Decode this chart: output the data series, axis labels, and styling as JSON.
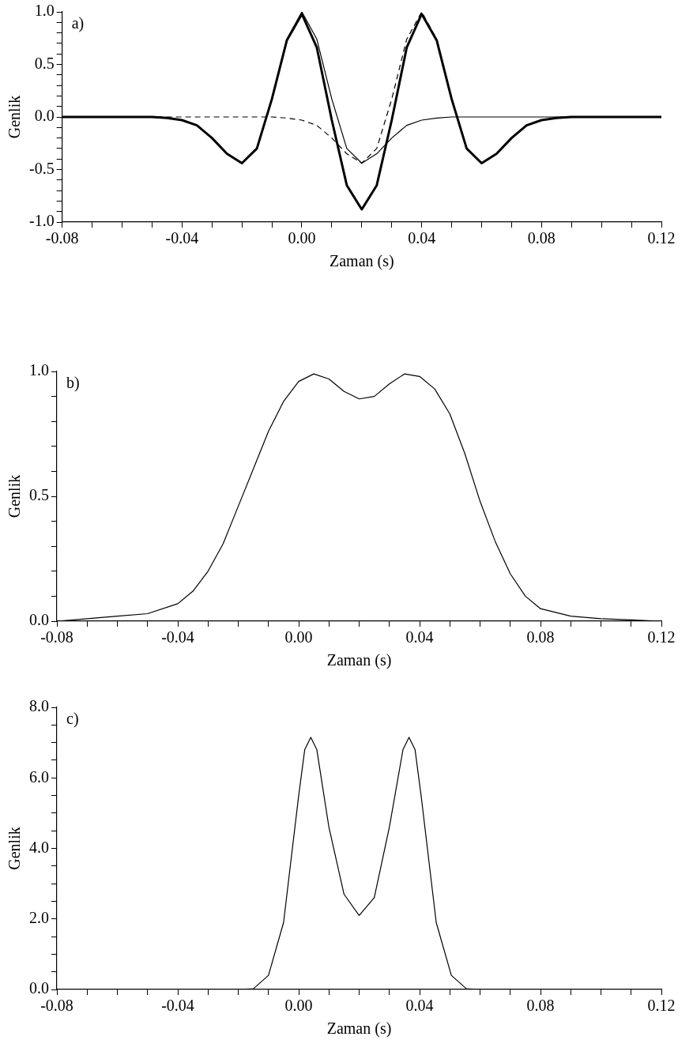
{
  "chart_data": [
    {
      "type": "line",
      "xlabel": "Zaman (s)",
      "ylabel": "Genlik",
      "annotations": [
        "a)"
      ],
      "grid": false,
      "legend": false,
      "marker": "none",
      "series": [
        {
          "color": "#000000",
          "line_style": "solid",
          "x": [
            -0.08,
            -0.05,
            -0.045,
            -0.04,
            -0.035,
            -0.03,
            -0.025,
            -0.02,
            -0.015,
            -0.01,
            -0.005,
            0,
            0.005,
            0.01,
            0.015,
            0.02,
            0.025,
            0.03,
            0.035,
            0.04,
            0.045,
            0.05,
            0.055,
            0.06,
            0.065,
            0.07,
            0.075,
            0.08,
            0.085,
            0.09,
            0.12
          ],
          "values": [
            0,
            0,
            -0.01,
            -0.03,
            -0.08,
            -0.2,
            -0.35,
            -0.44,
            -0.3,
            0.17,
            0.73,
            0.98,
            0.66,
            -0.03,
            -0.65,
            -0.88,
            -0.65,
            -0.03,
            0.66,
            0.98,
            0.73,
            0.17,
            -0.3,
            -0.44,
            -0.35,
            -0.2,
            -0.08,
            -0.03,
            -0.01,
            0,
            0
          ]
        },
        {
          "color": "#000000",
          "line_style": "solid",
          "x": [
            -0.08,
            -0.05,
            -0.045,
            -0.04,
            -0.035,
            -0.03,
            -0.025,
            -0.02,
            -0.015,
            -0.01,
            -0.005,
            0,
            0.005,
            0.01,
            0.015,
            0.02,
            0.025,
            0.03,
            0.035,
            0.04,
            0.045,
            0.05,
            0.12
          ],
          "values": [
            0,
            0,
            -0.01,
            -0.03,
            -0.08,
            -0.2,
            -0.35,
            -0.44,
            -0.3,
            0.17,
            0.74,
            1.0,
            0.74,
            0.17,
            -0.3,
            -0.44,
            -0.35,
            -0.2,
            -0.08,
            -0.03,
            -0.01,
            0,
            0
          ]
        },
        {
          "color": "#000000",
          "line_style": "dashed",
          "x": [
            -0.08,
            -0.01,
            -0.005,
            0,
            0.005,
            0.01,
            0.015,
            0.02,
            0.025,
            0.03,
            0.035,
            0.04,
            0.045,
            0.05,
            0.055,
            0.06,
            0.065,
            0.07,
            0.075,
            0.08,
            0.085,
            0.09,
            0.12
          ],
          "values": [
            0,
            0,
            -0.01,
            -0.03,
            -0.08,
            -0.2,
            -0.35,
            -0.44,
            -0.3,
            0.17,
            0.74,
            1.0,
            0.74,
            0.17,
            -0.3,
            -0.44,
            -0.35,
            -0.2,
            -0.08,
            -0.03,
            -0.01,
            0,
            0
          ]
        }
      ],
      "xlim": [
        -0.08,
        0.12
      ],
      "xticks": [
        {
          "value": -0.08,
          "label": "-0.08"
        },
        {
          "value": -0.07,
          "label": null
        },
        {
          "value": -0.06,
          "label": null
        },
        {
          "value": -0.05,
          "label": null
        },
        {
          "value": -0.04,
          "label": "-0.04"
        },
        {
          "value": -0.03,
          "label": null
        },
        {
          "value": -0.02,
          "label": null
        },
        {
          "value": -0.01,
          "label": null
        },
        {
          "value": 0,
          "label": "0.00"
        },
        {
          "value": 0.01,
          "label": null
        },
        {
          "value": 0.02,
          "label": null
        },
        {
          "value": 0.03,
          "label": null
        },
        {
          "value": 0.04,
          "label": "0.04"
        },
        {
          "value": 0.05,
          "label": null
        },
        {
          "value": 0.06,
          "label": null
        },
        {
          "value": 0.07,
          "label": null
        },
        {
          "value": 0.08,
          "label": "0.08"
        },
        {
          "value": 0.09,
          "label": null
        },
        {
          "value": 0.1,
          "label": null
        },
        {
          "value": 0.11,
          "label": null
        },
        {
          "value": 0.12,
          "label": "0.12"
        }
      ],
      "ylim": [
        -1.0,
        1.0
      ],
      "yticks": [
        {
          "value": -1.0,
          "label": "-1.0"
        },
        {
          "value": -0.9,
          "label": null
        },
        {
          "value": -0.8,
          "label": null
        },
        {
          "value": -0.7,
          "label": null
        },
        {
          "value": -0.6,
          "label": null
        },
        {
          "value": -0.5,
          "label": "-0.5"
        },
        {
          "value": -0.4,
          "label": null
        },
        {
          "value": -0.3,
          "label": null
        },
        {
          "value": -0.2,
          "label": null
        },
        {
          "value": -0.1,
          "label": null
        },
        {
          "value": 0,
          "label": "0.0"
        },
        {
          "value": 0.1,
          "label": null
        },
        {
          "value": 0.2,
          "label": null
        },
        {
          "value": 0.3,
          "label": null
        },
        {
          "value": 0.4,
          "label": null
        },
        {
          "value": 0.5,
          "label": "0.5"
        },
        {
          "value": 0.6,
          "label": null
        },
        {
          "value": 0.7,
          "label": null
        },
        {
          "value": 0.8,
          "label": null
        },
        {
          "value": 0.9,
          "label": null
        },
        {
          "value": 1.0,
          "label": "1.0"
        }
      ]
    },
    {
      "type": "line",
      "xlabel": "Zaman (s)",
      "ylabel": "Genlik",
      "annotations": [
        "b)"
      ],
      "grid": false,
      "legend": false,
      "marker": "none",
      "series": [
        {
          "color": "#000000",
          "x": [
            -0.08,
            -0.07,
            -0.06,
            -0.05,
            -0.04,
            -0.035,
            -0.03,
            -0.025,
            -0.02,
            -0.015,
            -0.01,
            -0.005,
            0,
            0.005,
            0.01,
            0.015,
            0.02,
            0.025,
            0.03,
            0.035,
            0.04,
            0.045,
            0.05,
            0.055,
            0.06,
            0.065,
            0.07,
            0.075,
            0.08,
            0.09,
            0.1,
            0.11,
            0.12
          ],
          "values": [
            0,
            0.01,
            0.02,
            0.03,
            0.07,
            0.12,
            0.2,
            0.31,
            0.46,
            0.61,
            0.76,
            0.88,
            0.96,
            0.99,
            0.97,
            0.92,
            0.89,
            0.9,
            0.95,
            0.99,
            0.98,
            0.93,
            0.83,
            0.67,
            0.48,
            0.32,
            0.19,
            0.1,
            0.05,
            0.02,
            0.01,
            0.005,
            0
          ]
        }
      ],
      "xlim": [
        -0.08,
        0.12
      ],
      "xticks": [
        {
          "value": -0.08,
          "label": "-0.08"
        },
        {
          "value": -0.07,
          "label": null
        },
        {
          "value": -0.06,
          "label": null
        },
        {
          "value": -0.05,
          "label": null
        },
        {
          "value": -0.04,
          "label": "-0.04"
        },
        {
          "value": -0.03,
          "label": null
        },
        {
          "value": -0.02,
          "label": null
        },
        {
          "value": -0.01,
          "label": null
        },
        {
          "value": 0,
          "label": "0.00"
        },
        {
          "value": 0.01,
          "label": null
        },
        {
          "value": 0.02,
          "label": null
        },
        {
          "value": 0.03,
          "label": null
        },
        {
          "value": 0.04,
          "label": "0.04"
        },
        {
          "value": 0.05,
          "label": null
        },
        {
          "value": 0.06,
          "label": null
        },
        {
          "value": 0.07,
          "label": null
        },
        {
          "value": 0.08,
          "label": "0.08"
        },
        {
          "value": 0.09,
          "label": null
        },
        {
          "value": 0.1,
          "label": null
        },
        {
          "value": 0.11,
          "label": null
        },
        {
          "value": 0.12,
          "label": "0.12"
        }
      ],
      "ylim": [
        0,
        1.0
      ],
      "yticks": [
        {
          "value": 0,
          "label": "0.0"
        },
        {
          "value": 0.1,
          "label": null
        },
        {
          "value": 0.2,
          "label": null
        },
        {
          "value": 0.3,
          "label": null
        },
        {
          "value": 0.4,
          "label": null
        },
        {
          "value": 0.5,
          "label": "0.5"
        },
        {
          "value": 0.6,
          "label": null
        },
        {
          "value": 0.7,
          "label": null
        },
        {
          "value": 0.8,
          "label": null
        },
        {
          "value": 0.9,
          "label": null
        },
        {
          "value": 1.0,
          "label": "1.0"
        }
      ]
    },
    {
      "type": "line",
      "xlabel": "Zaman (s)",
      "ylabel": "Genlik",
      "annotations": [
        "c)"
      ],
      "grid": false,
      "legend": false,
      "marker": "none",
      "series": [
        {
          "color": "#000000",
          "x": [
            -0.08,
            -0.02,
            -0.015,
            -0.01,
            -0.005,
            0,
            0.002,
            0.004,
            0.006,
            0.01,
            0.015,
            0.02,
            0.025,
            0.03,
            0.0345,
            0.0365,
            0.0385,
            0.0405,
            0.0455,
            0.0505,
            0.0555,
            0.06,
            0.12
          ],
          "values": [
            0,
            0,
            0.02,
            0.4,
            1.9,
            5.5,
            6.8,
            7.15,
            6.8,
            4.6,
            2.7,
            2.1,
            2.6,
            4.6,
            6.8,
            7.15,
            6.8,
            5.5,
            1.9,
            0.4,
            0.02,
            0,
            0
          ]
        }
      ],
      "xlim": [
        -0.08,
        0.12
      ],
      "xticks": [
        {
          "value": -0.08,
          "label": "-0.08"
        },
        {
          "value": -0.07,
          "label": null
        },
        {
          "value": -0.06,
          "label": null
        },
        {
          "value": -0.05,
          "label": null
        },
        {
          "value": -0.04,
          "label": "-0.04"
        },
        {
          "value": -0.03,
          "label": null
        },
        {
          "value": -0.02,
          "label": null
        },
        {
          "value": -0.01,
          "label": null
        },
        {
          "value": 0,
          "label": "0.00"
        },
        {
          "value": 0.01,
          "label": null
        },
        {
          "value": 0.02,
          "label": null
        },
        {
          "value": 0.03,
          "label": null
        },
        {
          "value": 0.04,
          "label": "0.04"
        },
        {
          "value": 0.05,
          "label": null
        },
        {
          "value": 0.06,
          "label": null
        },
        {
          "value": 0.07,
          "label": null
        },
        {
          "value": 0.08,
          "label": "0.08"
        },
        {
          "value": 0.09,
          "label": null
        },
        {
          "value": 0.1,
          "label": null
        },
        {
          "value": 0.11,
          "label": null
        },
        {
          "value": 0.12,
          "label": "0.12"
        }
      ],
      "ylim": [
        0,
        8.0
      ],
      "yticks": [
        {
          "value": 0,
          "label": "0.0"
        },
        {
          "value": 0.5,
          "label": null
        },
        {
          "value": 1.0,
          "label": null
        },
        {
          "value": 1.5,
          "label": null
        },
        {
          "value": 2.0,
          "label": "2.0"
        },
        {
          "value": 2.5,
          "label": null
        },
        {
          "value": 3.0,
          "label": null
        },
        {
          "value": 3.5,
          "label": null
        },
        {
          "value": 4.0,
          "label": "4.0"
        },
        {
          "value": 4.5,
          "label": null
        },
        {
          "value": 5.0,
          "label": null
        },
        {
          "value": 5.5,
          "label": null
        },
        {
          "value": 6.0,
          "label": "6.0"
        },
        {
          "value": 6.5,
          "label": null
        },
        {
          "value": 7.0,
          "label": null
        },
        {
          "value": 7.5,
          "label": null
        },
        {
          "value": 8.0,
          "label": "8.0"
        }
      ]
    }
  ]
}
